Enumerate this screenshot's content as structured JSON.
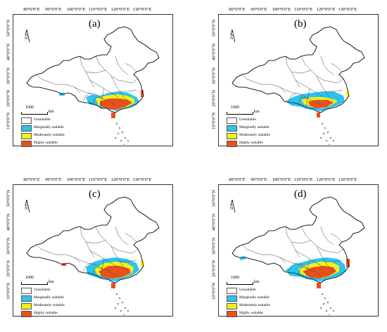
{
  "panels": [
    {
      "label": "(a)",
      "variant": "a"
    },
    {
      "label": "(b)",
      "variant": "b"
    },
    {
      "label": "(c)",
      "variant": "c"
    },
    {
      "label": "(d)",
      "variant": "d"
    }
  ],
  "lon_ticks": [
    "80°0'0\"E",
    "90°0'0\"E",
    "100°0'0\"E",
    "110°0'0\"E",
    "120°0'0\"E",
    "130°0'0\"E"
  ],
  "lat_ticks": [
    "50°0'0\"N",
    "40°0'0\"N",
    "30°0'0\"N",
    "20°0'0\"N",
    "10°0'0\"N"
  ],
  "scale": {
    "value": "1000",
    "unit": "km"
  },
  "legend": [
    {
      "label": "Unsuitable",
      "color": "#ffffff"
    },
    {
      "label": "Marginally suitable",
      "color": "#2ec3ee"
    },
    {
      "label": "Moderately suitable",
      "color": "#f2f01a"
    },
    {
      "label": "Highly suitable",
      "color": "#e8501c"
    }
  ]
}
